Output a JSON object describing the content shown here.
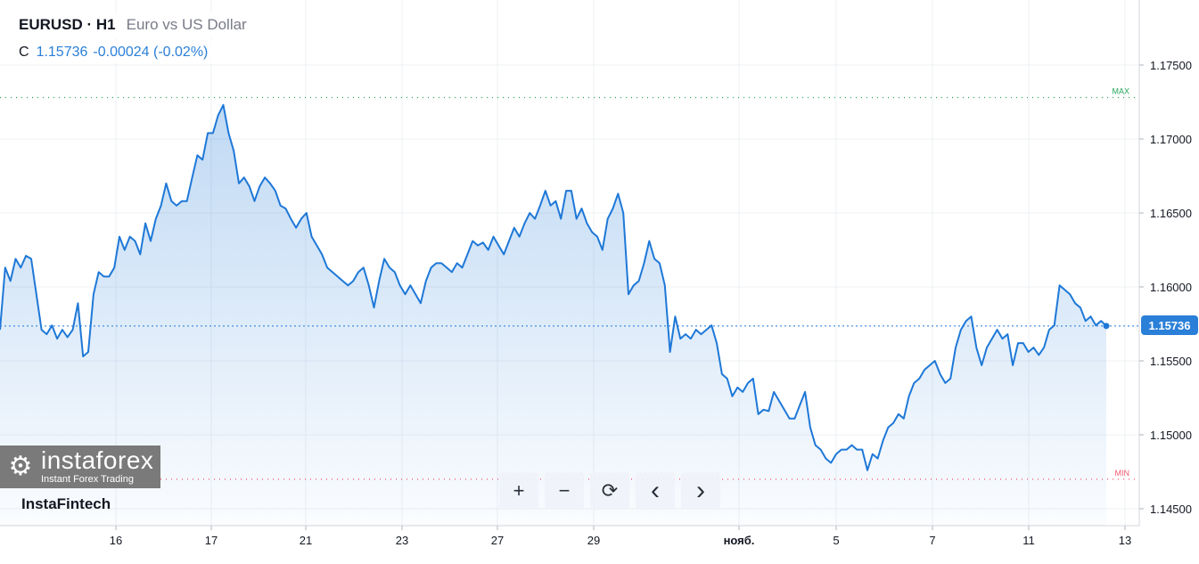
{
  "header": {
    "symbol": "EURUSD · H1",
    "description": "Euro vs US Dollar",
    "close_label": "C",
    "close_value": "1.15736",
    "change": "-0.00024 (-0.02%)"
  },
  "brand": "InstaFintech",
  "watermark": {
    "name": "instaforex",
    "tagline": "Instant Forex Trading"
  },
  "toolbar": {
    "zoom_in": "+",
    "zoom_out": "−",
    "reset": "⟳",
    "left": "‹",
    "right": "›"
  },
  "colors": {
    "line": "#1e78d7",
    "max": "#26a65b",
    "min": "#f05a6e",
    "grid": "#eef0f3"
  },
  "chart_data": {
    "type": "area",
    "title": "EURUSD · H1",
    "ylim": [
      1.1445,
      1.1795
    ],
    "y_ticks": [
      "1.14500",
      "1.15000",
      "1.15500",
      "1.16000",
      "1.16500",
      "1.17000",
      "1.17500"
    ],
    "x_ticks": [
      "16",
      "17",
      "21",
      "23",
      "27",
      "29",
      "нояб.",
      "5",
      "7",
      "11",
      "13"
    ],
    "grid": true,
    "max": {
      "label": "MAX",
      "value": 1.1728
    },
    "min": {
      "label": "MIN",
      "value": 1.147
    },
    "last": {
      "label": "1.15736",
      "value": 1.15736
    },
    "values": [
      1.1571,
      1.1613,
      1.1604,
      1.1619,
      1.1613,
      1.1621,
      1.1619,
      1.1595,
      1.1571,
      1.1568,
      1.1574,
      1.1565,
      1.1571,
      1.1566,
      1.1571,
      1.1589,
      1.1553,
      1.1556,
      1.1595,
      1.161,
      1.1607,
      1.1607,
      1.1613,
      1.1634,
      1.1625,
      1.1634,
      1.1631,
      1.1622,
      1.1643,
      1.1631,
      1.1646,
      1.1655,
      1.167,
      1.1658,
      1.1655,
      1.1658,
      1.1658,
      1.1674,
      1.1689,
      1.1686,
      1.1704,
      1.1704,
      1.1716,
      1.1723,
      1.1704,
      1.1692,
      1.167,
      1.1674,
      1.1668,
      1.1658,
      1.1668,
      1.1674,
      1.167,
      1.1665,
      1.1655,
      1.1653,
      1.1646,
      1.164,
      1.1646,
      1.165,
      1.1634,
      1.1628,
      1.1622,
      1.1613,
      1.161,
      1.1607,
      1.1604,
      1.1601,
      1.1604,
      1.161,
      1.1613,
      1.1601,
      1.1586,
      1.1604,
      1.1619,
      1.1613,
      1.161,
      1.1601,
      1.1595,
      1.1601,
      1.1595,
      1.1589,
      1.1604,
      1.1613,
      1.1616,
      1.1616,
      1.1613,
      1.161,
      1.1616,
      1.1613,
      1.1622,
      1.1631,
      1.1628,
      1.163,
      1.1625,
      1.1634,
      1.1628,
      1.1622,
      1.1631,
      1.164,
      1.1634,
      1.1643,
      1.165,
      1.1646,
      1.1655,
      1.1665,
      1.1655,
      1.1658,
      1.1646,
      1.1665,
      1.1665,
      1.1646,
      1.1653,
      1.1643,
      1.1637,
      1.1634,
      1.1625,
      1.1646,
      1.1653,
      1.1663,
      1.165,
      1.1595,
      1.1601,
      1.1604,
      1.1616,
      1.1631,
      1.1619,
      1.1616,
      1.1601,
      1.1556,
      1.158,
      1.1565,
      1.1568,
      1.1565,
      1.1571,
      1.1568,
      1.1571,
      1.1574,
      1.1562,
      1.1541,
      1.1538,
      1.1526,
      1.1532,
      1.1529,
      1.1535,
      1.1538,
      1.1514,
      1.1517,
      1.1516,
      1.1529,
      1.1523,
      1.1517,
      1.1511,
      1.1511,
      1.152,
      1.1529,
      1.1505,
      1.1493,
      1.149,
      1.1484,
      1.1481,
      1.1487,
      1.149,
      1.149,
      1.1493,
      1.149,
      1.149,
      1.1476,
      1.1487,
      1.1484,
      1.1496,
      1.1505,
      1.1508,
      1.1514,
      1.1511,
      1.1526,
      1.1535,
      1.1538,
      1.1544,
      1.1547,
      1.155,
      1.1541,
      1.1535,
      1.1538,
      1.1559,
      1.1571,
      1.1577,
      1.158,
      1.1559,
      1.1547,
      1.1559,
      1.1565,
      1.1571,
      1.1565,
      1.1568,
      1.1547,
      1.1562,
      1.1562,
      1.1556,
      1.1559,
      1.1554,
      1.1559,
      1.1571,
      1.1574,
      1.1601,
      1.1598,
      1.1595,
      1.1589,
      1.1586,
      1.1577,
      1.158,
      1.1574,
      1.1577,
      1.15736
    ]
  }
}
